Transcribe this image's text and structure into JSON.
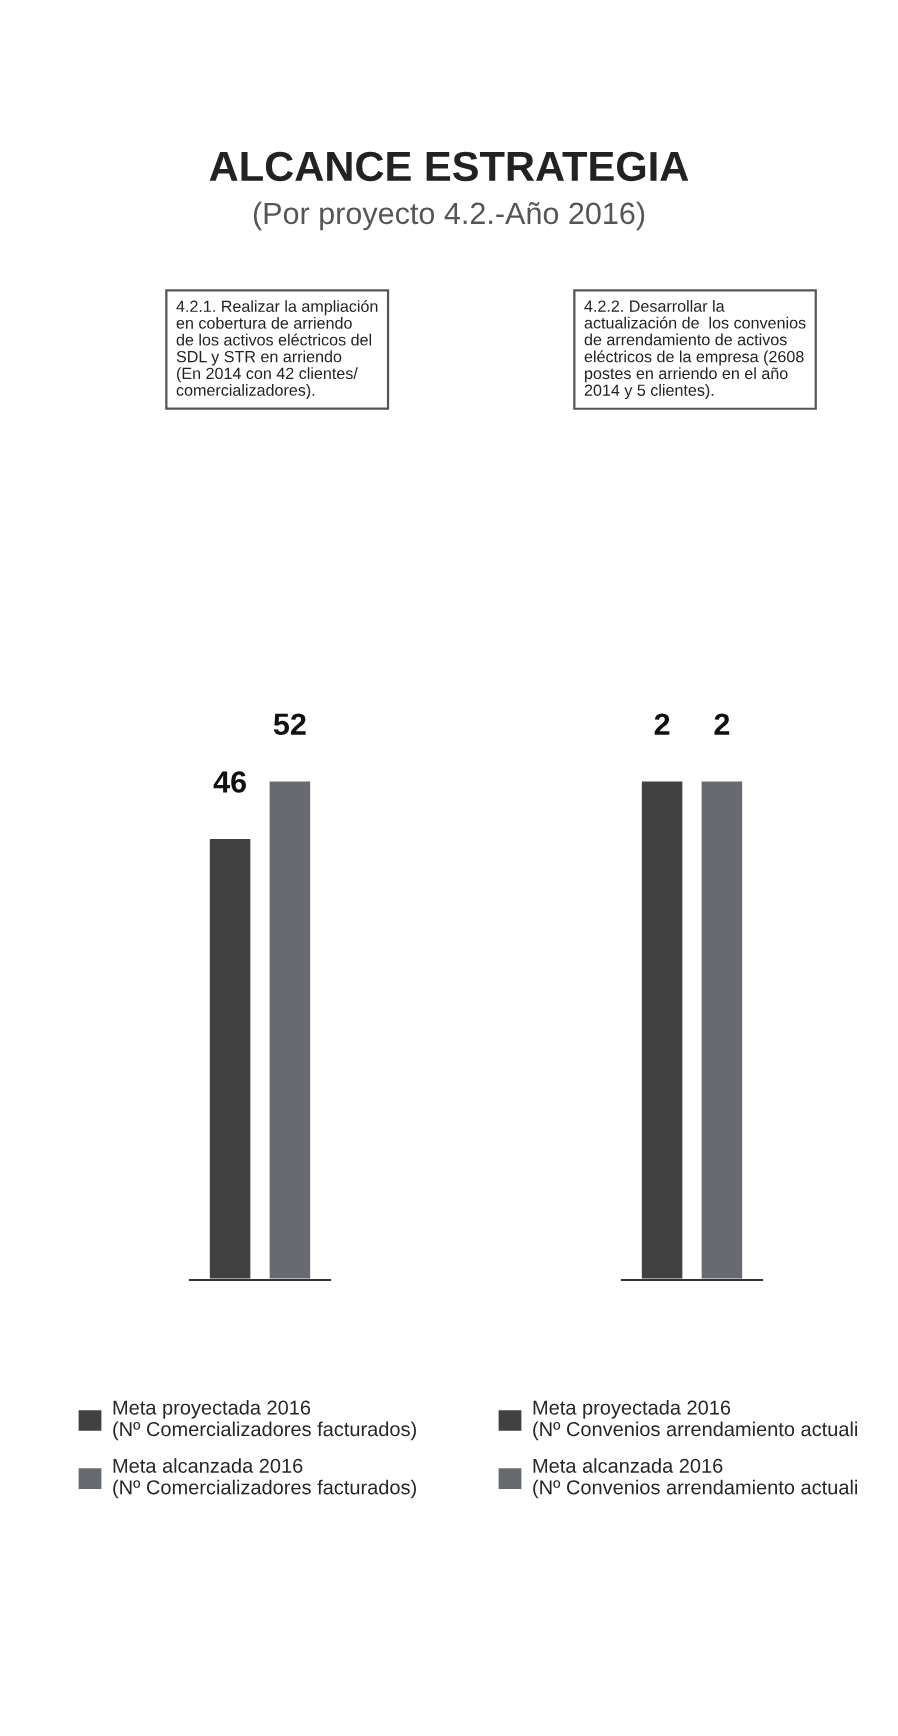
{
  "chart_data": [
    {
      "type": "bar",
      "title": "ALCANCE ESTRATEGIA",
      "subtitle": "(Por proyecto 4.2.-Año 2016)",
      "annotations": [
        "4.2.1. Realizar la ampliación\nen cobertura de arriendo\nde los activos eléctricos del\nSDL y STR en arriendo\n(En 2014 con 42 clientes/\ncomercializadores)."
      ],
      "categories": [
        null
      ],
      "series": [
        {
          "name": "Meta proyectada 2016\n(Nº Comercializadores facturados)",
          "color": "#414141",
          "values": [
            46
          ]
        },
        {
          "name": "Meta alcanzada 2016\n(Nº Comercializadores facturados)",
          "color": "#676b6f",
          "values": [
            52
          ]
        }
      ],
      "data_labels": true,
      "legend": "bottom"
    },
    {
      "type": "bar",
      "annotations": [
        "4.2.2. Desarrollar la\nactualización de  los convenios\nde arrendamiento de activos\neléctricos de la empresa (2608\npostes en arriendo en el año\n2014 y 5 clientes)."
      ],
      "categories": [
        null
      ],
      "series": [
        {
          "name": "Meta proyectada 2016\n(Nº Convenios arrendamiento actuali",
          "color": "#414141",
          "values": [
            2
          ]
        },
        {
          "name": "Meta alcanzada 2016\n(Nº Convenios arrendamiento actuali",
          "color": "#676b6f",
          "values": [
            2
          ]
        }
      ],
      "data_labels": true,
      "legend": "bottom"
    }
  ]
}
